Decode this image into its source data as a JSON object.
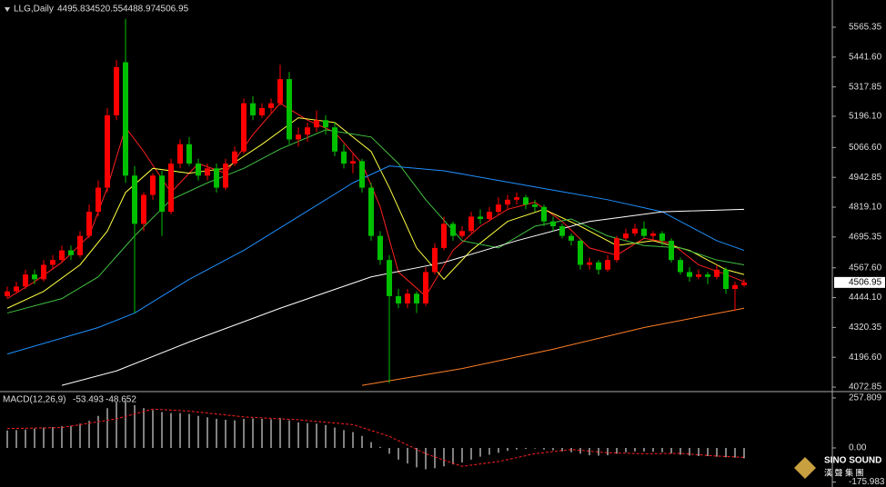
{
  "chart_data": [
    {
      "type": "candlestick",
      "title": "LLG,Daily",
      "up_color": "#ff0000",
      "down_color": "#00c000",
      "ohlc": [
        [
          4450,
          4490,
          4440,
          4470
        ],
        [
          4470,
          4510,
          4460,
          4490
        ],
        [
          4490,
          4560,
          4480,
          4540
        ],
        [
          4540,
          4560,
          4500,
          4520
        ],
        [
          4520,
          4600,
          4510,
          4580
        ],
        [
          4580,
          4620,
          4560,
          4600
        ],
        [
          4600,
          4660,
          4590,
          4640
        ],
        [
          4640,
          4660,
          4600,
          4620
        ],
        [
          4620,
          4720,
          4610,
          4700
        ],
        [
          4700,
          4830,
          4690,
          4800
        ],
        [
          4800,
          4930,
          4780,
          4900
        ],
        [
          4900,
          5230,
          4880,
          5200
        ],
        [
          5200,
          5430,
          5180,
          5400
        ],
        [
          5420,
          5600,
          4920,
          4950
        ],
        [
          4950,
          4990,
          4380,
          4750
        ],
        [
          4750,
          4880,
          4720,
          4870
        ],
        [
          4870,
          4960,
          4850,
          4950
        ],
        [
          4950,
          4970,
          4700,
          4800
        ],
        [
          4800,
          5020,
          4790,
          5000
        ],
        [
          5000,
          5100,
          4980,
          5080
        ],
        [
          5080,
          5110,
          4990,
          5000
        ],
        [
          5000,
          5020,
          4930,
          4950
        ],
        [
          4950,
          5000,
          4930,
          4980
        ],
        [
          4980,
          5000,
          4880,
          4900
        ],
        [
          4900,
          5020,
          4890,
          5000
        ],
        [
          5000,
          5070,
          4990,
          5050
        ],
        [
          5050,
          5270,
          5040,
          5250
        ],
        [
          5250,
          5280,
          5180,
          5200
        ],
        [
          5200,
          5250,
          5190,
          5230
        ],
        [
          5230,
          5270,
          5210,
          5250
        ],
        [
          5250,
          5410,
          5240,
          5350
        ],
        [
          5350,
          5380,
          5080,
          5100
        ],
        [
          5100,
          5150,
          5070,
          5120
        ],
        [
          5120,
          5170,
          5090,
          5150
        ],
        [
          5150,
          5220,
          5130,
          5180
        ],
        [
          5180,
          5200,
          5120,
          5150
        ],
        [
          5150,
          5170,
          5030,
          5050
        ],
        [
          5050,
          5080,
          4980,
          5000
        ],
        [
          5000,
          5040,
          4960,
          5010
        ],
        [
          5010,
          5020,
          4880,
          4900
        ],
        [
          4900,
          4920,
          4680,
          4700
        ],
        [
          4700,
          4720,
          4580,
          4600
        ],
        [
          4600,
          4620,
          4090,
          4450
        ],
        [
          4450,
          4480,
          4400,
          4420
        ],
        [
          4420,
          4480,
          4400,
          4460
        ],
        [
          4460,
          4470,
          4380,
          4420
        ],
        [
          4420,
          4570,
          4410,
          4550
        ],
        [
          4550,
          4670,
          4540,
          4650
        ],
        [
          4650,
          4780,
          4640,
          4750
        ],
        [
          4750,
          4760,
          4680,
          4700
        ],
        [
          4700,
          4740,
          4690,
          4720
        ],
        [
          4720,
          4800,
          4710,
          4780
        ],
        [
          4780,
          4810,
          4750,
          4770
        ],
        [
          4770,
          4820,
          4760,
          4800
        ],
        [
          4800,
          4860,
          4790,
          4830
        ],
        [
          4830,
          4870,
          4810,
          4850
        ],
        [
          4850,
          4880,
          4830,
          4860
        ],
        [
          4860,
          4870,
          4810,
          4830
        ],
        [
          4830,
          4850,
          4800,
          4820
        ],
        [
          4820,
          4830,
          4740,
          4760
        ],
        [
          4760,
          4780,
          4720,
          4740
        ],
        [
          4740,
          4750,
          4690,
          4700
        ],
        [
          4700,
          4710,
          4660,
          4680
        ],
        [
          4680,
          4690,
          4560,
          4580
        ],
        [
          4580,
          4610,
          4560,
          4590
        ],
        [
          4590,
          4600,
          4540,
          4560
        ],
        [
          4560,
          4620,
          4550,
          4600
        ],
        [
          4600,
          4700,
          4590,
          4690
        ],
        [
          4690,
          4730,
          4680,
          4710
        ],
        [
          4710,
          4750,
          4700,
          4730
        ],
        [
          4730,
          4760,
          4690,
          4700
        ],
        [
          4700,
          4720,
          4680,
          4710
        ],
        [
          4710,
          4720,
          4660,
          4680
        ],
        [
          4680,
          4690,
          4590,
          4600
        ],
        [
          4600,
          4610,
          4540,
          4550
        ],
        [
          4550,
          4570,
          4510,
          4530
        ],
        [
          4530,
          4560,
          4520,
          4540
        ],
        [
          4540,
          4550,
          4500,
          4530
        ],
        [
          4530,
          4580,
          4520,
          4560
        ],
        [
          4560,
          4570,
          4460,
          4480
        ],
        [
          4480,
          4510,
          4390,
          4495.83
        ],
        [
          4495.83,
          4520.55,
          4488.97,
          4506.95
        ]
      ],
      "series": [
        {
          "color": "#ff2020",
          "x": [
            0,
            3,
            6,
            9,
            11,
            13,
            15,
            18,
            21,
            24,
            27,
            30,
            33,
            36,
            39,
            41,
            43,
            46,
            49,
            52,
            55,
            58,
            61,
            64,
            67,
            70,
            73,
            76,
            79,
            81
          ],
          "values": [
            4440,
            4510,
            4590,
            4700,
            4900,
            5150,
            5050,
            4880,
            5000,
            4960,
            5120,
            5250,
            5180,
            5130,
            5000,
            4820,
            4550,
            4450,
            4640,
            4740,
            4810,
            4840,
            4760,
            4650,
            4620,
            4690,
            4670,
            4580,
            4540,
            4510
          ]
        },
        {
          "color": "#ffff40",
          "x": [
            0,
            4,
            8,
            11,
            13,
            16,
            20,
            24,
            28,
            32,
            36,
            40,
            42,
            45,
            48,
            51,
            55,
            59,
            63,
            67,
            71,
            75,
            79,
            81
          ],
          "values": [
            4400,
            4470,
            4580,
            4720,
            4880,
            4980,
            4960,
            4980,
            5080,
            5190,
            5170,
            5050,
            4900,
            4650,
            4520,
            4640,
            4760,
            4810,
            4740,
            4660,
            4680,
            4640,
            4560,
            4540
          ]
        },
        {
          "color": "#40c040",
          "x": [
            0,
            6,
            10,
            14,
            18,
            22,
            26,
            30,
            35,
            40,
            43,
            46,
            50,
            54,
            58,
            62,
            66,
            70,
            74,
            78,
            81
          ],
          "values": [
            4380,
            4440,
            4530,
            4700,
            4850,
            4920,
            4980,
            5060,
            5140,
            5110,
            5000,
            4850,
            4680,
            4650,
            4740,
            4770,
            4700,
            4660,
            4650,
            4600,
            4580
          ]
        },
        {
          "color": "#1e90ff",
          "x": [
            0,
            10,
            14,
            20,
            26,
            32,
            38,
            42,
            48,
            54,
            60,
            66,
            72,
            78,
            81
          ],
          "values": [
            4210,
            4320,
            4380,
            4520,
            4640,
            4780,
            4920,
            4990,
            4970,
            4930,
            4890,
            4850,
            4800,
            4680,
            4640
          ]
        },
        {
          "color": "#ffffff",
          "x": [
            6,
            12,
            20,
            30,
            40,
            48,
            56,
            64,
            72,
            81
          ],
          "values": [
            4080,
            4140,
            4260,
            4400,
            4530,
            4590,
            4680,
            4760,
            4800,
            4810
          ]
        },
        {
          "color": "#ff7f27",
          "x": [
            39,
            50,
            60,
            70,
            81
          ],
          "values": [
            4080,
            4150,
            4230,
            4320,
            4400
          ]
        }
      ],
      "ylim": [
        4058,
        5667
      ],
      "yticks": [
        5565.35,
        {
          "value": 5441.6,
          "label": "5441.60"
        },
        5317.85,
        {
          "value": 5196.1,
          "label": "5196.10"
        },
        {
          "value": 5066.6,
          "label": "5066.60"
        },
        4942.85,
        {
          "value": 4819.1,
          "label": "4819.10"
        },
        4695.35,
        {
          "value": 4567.6,
          "label": "4567.60"
        },
        {
          "value": 4444.1,
          "label": "4444.10"
        },
        4320.35,
        {
          "value": 4196.6,
          "label": "4196.60"
        },
        4072.85
      ]
    },
    {
      "type": "bar",
      "title": "MACD(12,26,9)",
      "color": "#ffffff",
      "values": [
        90,
        92,
        95,
        100,
        105,
        108,
        112,
        115,
        125,
        140,
        165,
        205,
        235,
        240,
        220,
        205,
        195,
        185,
        180,
        180,
        175,
        165,
        158,
        150,
        145,
        142,
        150,
        152,
        150,
        148,
        155,
        142,
        132,
        128,
        125,
        118,
        105,
        92,
        82,
        62,
        30,
        5,
        -30,
        -60,
        -80,
        -100,
        -110,
        -105,
        -95,
        -85,
        -75,
        -60,
        -45,
        -35,
        -25,
        -15,
        -8,
        -5,
        -3,
        -8,
        -12,
        -18,
        -22,
        -30,
        -38,
        -40,
        -38,
        -30,
        -22,
        -18,
        -18,
        -20,
        -22,
        -28,
        -35,
        -40,
        -42,
        -42,
        -45,
        -48,
        -50,
        -53.493
      ],
      "series": [
        {
          "color": "#ff2020",
          "x": [
            0,
            6,
            12,
            16,
            20,
            26,
            32,
            38,
            42,
            46,
            50,
            54,
            58,
            62,
            66,
            70,
            74,
            78,
            81
          ],
          "values": [
            100,
            105,
            150,
            200,
            190,
            160,
            145,
            120,
            60,
            -30,
            -95,
            -70,
            -30,
            -8,
            -25,
            -30,
            -28,
            -42,
            -48.652
          ]
        }
      ],
      "ylim": [
        -192,
        281
      ],
      "yticks": [
        257.809,
        {
          "value": 0,
          "label": "0.00"
        },
        -175.983
      ]
    }
  ],
  "watermark": {
    "name": "SINO SOUND",
    "subtitle": "漢 聲 集 團"
  }
}
